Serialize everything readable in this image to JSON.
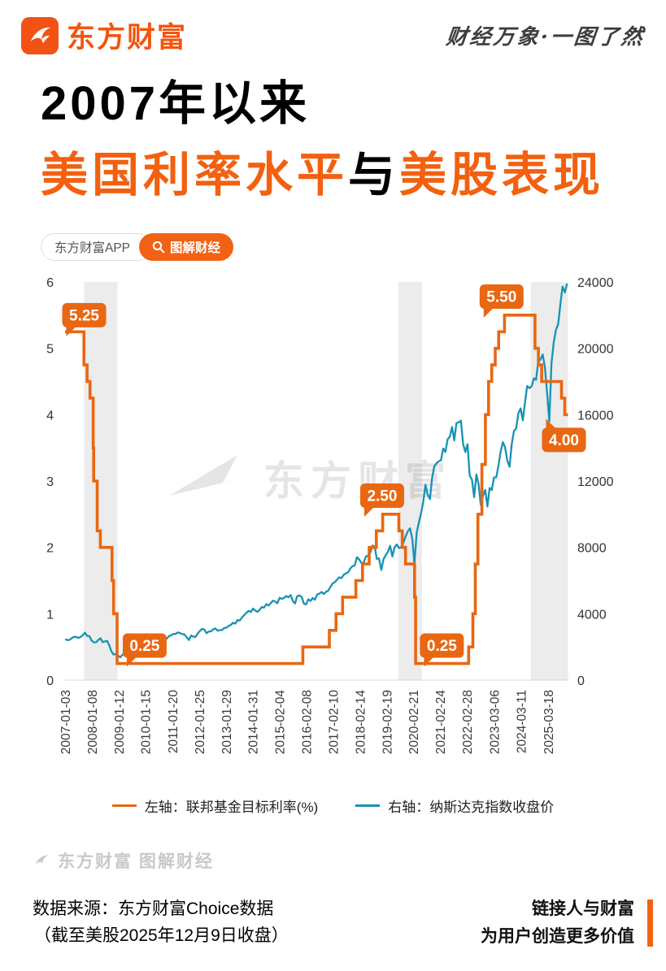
{
  "header": {
    "brand": "东方财富",
    "slogan": "财经万象·一图了然"
  },
  "title": {
    "line1": "2007年以来",
    "line2_part1": "美国利率水平",
    "line2_part2": "与",
    "line2_part3": "美股表现"
  },
  "badges": {
    "app": "东方财富APP",
    "tag": "图解财经"
  },
  "watermark": {
    "chart": "东方财富",
    "footer": "东方财富 图解财经"
  },
  "footer": {
    "source_line1": "数据来源：东方财富Choice数据",
    "source_line2": "（截至美股2025年12月9日收盘）",
    "slogan_line1": "链接人与财富",
    "slogan_line2": "为用户创造更多价值"
  },
  "colors": {
    "brand_orange": "#f3600f",
    "rate_line": "#e96712",
    "nasdaq_line": "#1792b4",
    "recession_band": "#ececec"
  },
  "chart_data": {
    "type": "line",
    "title": "2007年以来美国利率水平与美股表现",
    "xlabel": "",
    "ylabel_left": "联邦基金目标利率(%)",
    "ylabel_right": "纳斯达克指数收盘价",
    "x_range": [
      2007.0,
      2026.0
    ],
    "left_ylim": [
      0,
      6
    ],
    "right_ylim": [
      0,
      24000
    ],
    "left_ticks": [
      0,
      1,
      2,
      3,
      4,
      5,
      6
    ],
    "right_ticks": [
      0,
      4000,
      8000,
      12000,
      16000,
      20000,
      24000
    ],
    "x_ticks": [
      {
        "label": "2007-01-03",
        "t": 2007.008
      },
      {
        "label": "2008-01-08",
        "t": 2008.021
      },
      {
        "label": "2009-01-12",
        "t": 2009.033
      },
      {
        "label": "2010-01-15",
        "t": 2010.04
      },
      {
        "label": "2011-01-20",
        "t": 2011.053
      },
      {
        "label": "2012-01-25",
        "t": 2012.066
      },
      {
        "label": "2013-01-29",
        "t": 2013.079
      },
      {
        "label": "2014-01-31",
        "t": 2014.082
      },
      {
        "label": "2015-02-04",
        "t": 2015.093
      },
      {
        "label": "2016-02-08",
        "t": 2016.104
      },
      {
        "label": "2017-02-10",
        "t": 2017.112
      },
      {
        "label": "2018-02-14",
        "t": 2018.121
      },
      {
        "label": "2019-02-19",
        "t": 2019.134
      },
      {
        "label": "2020-02-21",
        "t": 2020.139
      },
      {
        "label": "2021-02-24",
        "t": 2021.148
      },
      {
        "label": "2022-02-28",
        "t": 2022.158
      },
      {
        "label": "2023-03-06",
        "t": 2023.178
      },
      {
        "label": "2024-03-11",
        "t": 2024.192
      },
      {
        "label": "2025-03-18",
        "t": 2025.211
      }
    ],
    "band_color": "#ececec",
    "recession_bands": [
      [
        2007.71,
        2008.98
      ],
      [
        2019.56,
        2020.45
      ],
      [
        2024.55,
        2025.95
      ]
    ],
    "series_colors": {
      "rate": "#e96712",
      "nasdaq": "#1792b4"
    },
    "legend": [
      {
        "label": "左轴：联邦基金目标利率(%)",
        "color": "#e96712"
      },
      {
        "label": "右轴：纳斯达克指数收盘价",
        "color": "#1792b4"
      }
    ],
    "rate_series": [
      [
        2007.0,
        5.25
      ],
      [
        2007.71,
        4.75
      ],
      [
        2007.83,
        4.5
      ],
      [
        2007.94,
        4.25
      ],
      [
        2008.06,
        3.5
      ],
      [
        2008.08,
        3.0
      ],
      [
        2008.21,
        2.25
      ],
      [
        2008.33,
        2.0
      ],
      [
        2008.77,
        1.5
      ],
      [
        2008.83,
        1.0
      ],
      [
        2008.96,
        0.25
      ],
      [
        2015.96,
        0.5
      ],
      [
        2016.96,
        0.75
      ],
      [
        2017.21,
        1.0
      ],
      [
        2017.46,
        1.25
      ],
      [
        2017.96,
        1.5
      ],
      [
        2018.21,
        1.75
      ],
      [
        2018.46,
        2.0
      ],
      [
        2018.73,
        2.25
      ],
      [
        2018.97,
        2.5
      ],
      [
        2019.58,
        2.25
      ],
      [
        2019.71,
        2.0
      ],
      [
        2019.83,
        1.75
      ],
      [
        2020.17,
        1.25
      ],
      [
        2020.21,
        0.25
      ],
      [
        2022.21,
        0.5
      ],
      [
        2022.37,
        1.0
      ],
      [
        2022.46,
        1.75
      ],
      [
        2022.56,
        2.5
      ],
      [
        2022.71,
        3.25
      ],
      [
        2022.84,
        4.0
      ],
      [
        2022.96,
        4.5
      ],
      [
        2023.08,
        4.75
      ],
      [
        2023.21,
        5.0
      ],
      [
        2023.34,
        5.25
      ],
      [
        2023.56,
        5.5
      ],
      [
        2024.71,
        5.0
      ],
      [
        2024.84,
        4.75
      ],
      [
        2024.96,
        4.5
      ],
      [
        2025.71,
        4.25
      ],
      [
        2025.83,
        4.0
      ]
    ],
    "rate_end": 2025.95,
    "nasdaq_monthly": {
      "start": 2007.0,
      "step": 0.0833333,
      "values": [
        2464,
        2416,
        2422,
        2525,
        2605,
        2603,
        2546,
        2596,
        2702,
        2859,
        2661,
        2652,
        2390,
        2271,
        2279,
        2413,
        2523,
        2293,
        2326,
        2368,
        2092,
        1721,
        1536,
        1577,
        1476,
        1378,
        1529,
        1717,
        1774,
        1835,
        1979,
        2009,
        2122,
        2045,
        2145,
        2269,
        2147,
        2238,
        2398,
        2461,
        2257,
        2109,
        2255,
        2114,
        2369,
        2507,
        2498,
        2653,
        2700,
        2782,
        2781,
        2874,
        2835,
        2774,
        2756,
        2579,
        2415,
        2684,
        2620,
        2605,
        2814,
        2967,
        3092,
        3046,
        2827,
        2935,
        2940,
        3067,
        3116,
        2977,
        3010,
        3020,
        3142,
        3160,
        3268,
        3329,
        3456,
        3403,
        3626,
        3590,
        3771,
        3920,
        4060,
        4177,
        4104,
        4308,
        4199,
        4115,
        4243,
        4408,
        4370,
        4580,
        4493,
        4631,
        4792,
        4736,
        4635,
        4964,
        4901,
        4941,
        5070,
        4987,
        5128,
        4777,
        4620,
        5054,
        5109,
        5007,
        4614,
        4558,
        4870,
        4775,
        4948,
        4843,
        5162,
        5213,
        5312,
        5189,
        5324,
        5383,
        5615,
        5825,
        5912,
        6048,
        6199,
        6140,
        6348,
        6429,
        6496,
        6728,
        6874,
        6903,
        7411,
        7273,
        7063,
        7066,
        7442,
        7510,
        7672,
        8110,
        8046,
        7306,
        7331,
        6635,
        7282,
        7533,
        7729,
        8095,
        7453,
        8006,
        8175,
        7963,
        7999,
        8292,
        8665,
        8973,
        9151,
        8567,
        7000,
        8890,
        9490,
        10059,
        10745,
        11775,
        11168,
        10912,
        12199,
        12888,
        13071,
        13192,
        13247,
        13963,
        13749,
        14504,
        14673,
        15259,
        14449,
        15498,
        15538,
        15645,
        14240,
        13751,
        14221,
        12335,
        12081,
        11029,
        12391,
        11816,
        10576,
        11102,
        11468,
        10466,
        11585,
        11456,
        12222,
        12227,
        12935,
        13788,
        14346,
        14035,
        13219,
        12851,
        14226,
        15011,
        15164,
        16092,
        16379,
        15658,
        16735,
        17733,
        17599,
        17714,
        18189,
        18095,
        19218,
        19311,
        19627,
        18847,
        17299,
        15603,
        19114,
        20370,
        21122,
        21456,
        22660,
        23725,
        23366,
        23900
      ]
    },
    "annotations": [
      {
        "text": "5.25",
        "t": 2007.72,
        "v": 5.5,
        "tail": "bl"
      },
      {
        "text": "0.25",
        "t": 2010.0,
        "v": 0.52,
        "tail": "bl"
      },
      {
        "text": "2.50",
        "t": 2018.95,
        "v": 2.78,
        "tail": "bl"
      },
      {
        "text": "0.25",
        "t": 2021.2,
        "v": 0.52,
        "tail": "bl"
      },
      {
        "text": "5.50",
        "t": 2023.45,
        "v": 5.78,
        "tail": "bl"
      },
      {
        "text": "4.00",
        "t": 2025.8,
        "v": 3.62,
        "tail": "tl"
      }
    ]
  }
}
